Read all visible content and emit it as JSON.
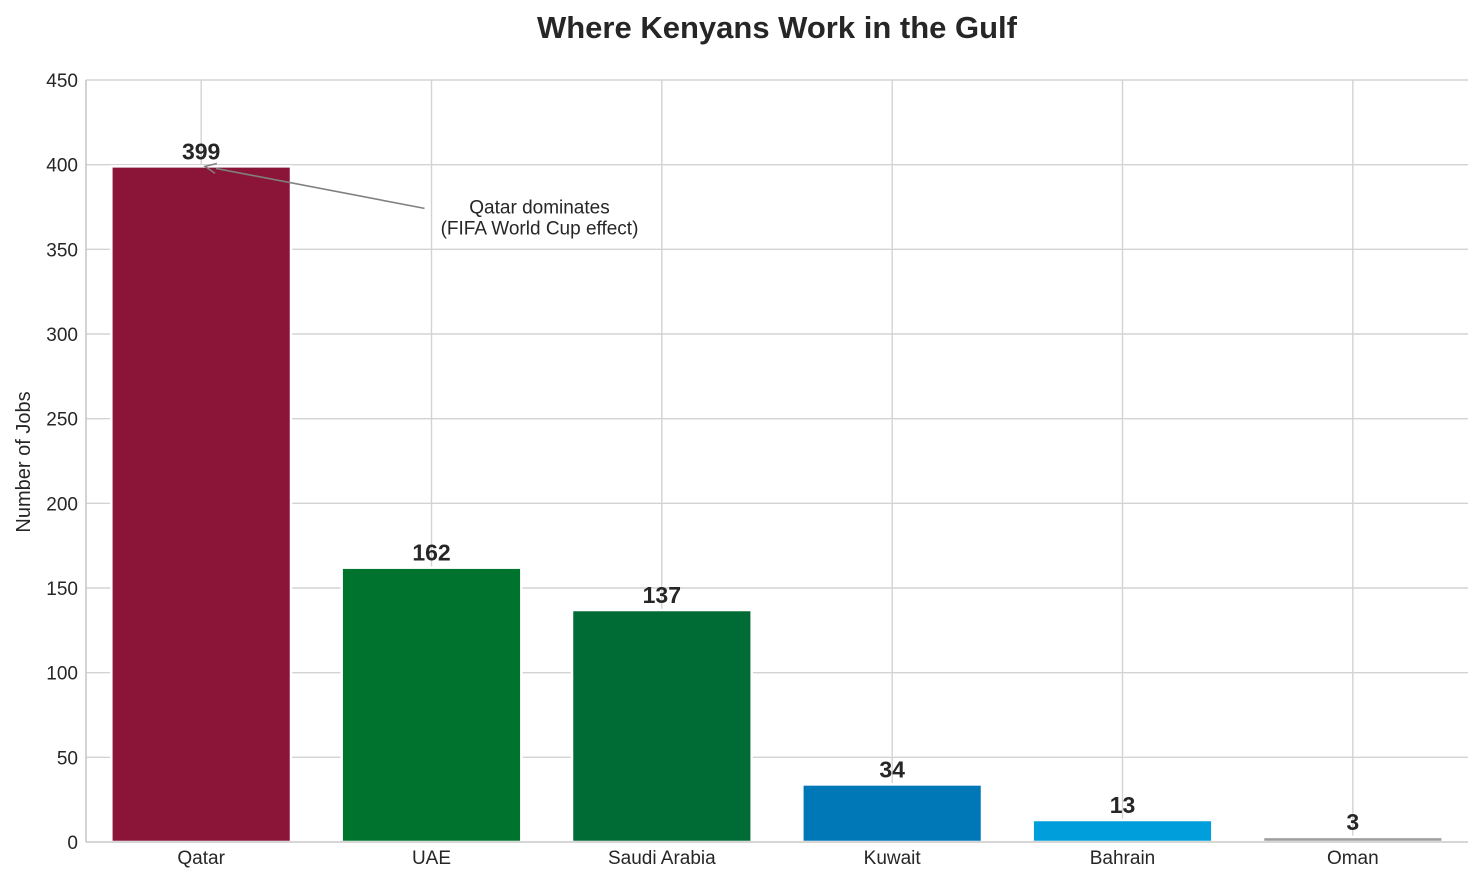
{
  "chart_data": {
    "type": "bar",
    "title": "Where Kenyans Work in the Gulf",
    "xlabel": "",
    "ylabel": "Number of Jobs",
    "ylim": [
      0,
      450
    ],
    "yticks": [
      0,
      50,
      100,
      150,
      200,
      250,
      300,
      350,
      400,
      450
    ],
    "categories": [
      "Qatar",
      "UAE",
      "Saudi Arabia",
      "Kuwait",
      "Bahrain",
      "Oman"
    ],
    "values": [
      399,
      162,
      137,
      34,
      13,
      3
    ],
    "colors": [
      "#8a1538",
      "#00732f",
      "#006c35",
      "#0077b6",
      "#009fdb",
      "#9e9e9e"
    ],
    "grid": true,
    "annotation": {
      "lines": [
        "Qatar dominates",
        "(FIFA World Cup effect)"
      ],
      "target_category": "Qatar",
      "target_value": 399,
      "text_anchor_value": 373,
      "arrow_color": "#808080"
    }
  }
}
